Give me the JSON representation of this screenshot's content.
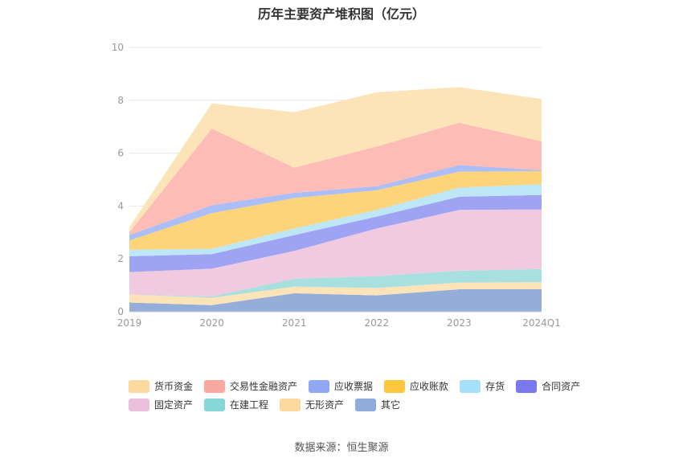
{
  "chart_data": {
    "type": "area",
    "stacked": true,
    "title": "历年主要资产堆积图（亿元）",
    "categories": [
      "2019",
      "2020",
      "2021",
      "2022",
      "2023",
      "2024Q1"
    ],
    "ylim": [
      0,
      10
    ],
    "yticks": [
      0,
      2,
      4,
      6,
      8,
      10
    ],
    "grid": true,
    "legend_position": "bottom",
    "series": [
      {
        "name": "其它",
        "color": "#94aed9",
        "values": [
          0.35,
          0.25,
          0.7,
          0.62,
          0.85,
          0.85
        ]
      },
      {
        "name": "无形资产",
        "color": "#fde3b8",
        "values": [
          0.3,
          0.28,
          0.25,
          0.28,
          0.25,
          0.27
        ]
      },
      {
        "name": "在建工程",
        "color": "#a8e0e0",
        "values": [
          0.0,
          0.05,
          0.3,
          0.45,
          0.45,
          0.5
        ]
      },
      {
        "name": "固定资产",
        "color": "#f0cbe0",
        "values": [
          0.85,
          1.05,
          1.05,
          1.8,
          2.3,
          2.25
        ]
      },
      {
        "name": "合同资产",
        "color": "#9fa3f3",
        "values": [
          0.6,
          0.55,
          0.6,
          0.45,
          0.5,
          0.55
        ]
      },
      {
        "name": "存货",
        "color": "#bde6f7",
        "values": [
          0.25,
          0.2,
          0.25,
          0.25,
          0.35,
          0.4
        ]
      },
      {
        "name": "应收账款",
        "color": "#fdd479",
        "values": [
          0.35,
          1.35,
          1.15,
          0.75,
          0.6,
          0.5
        ]
      },
      {
        "name": "应收票据",
        "color": "#abbef7",
        "values": [
          0.2,
          0.3,
          0.2,
          0.15,
          0.25,
          0.03
        ]
      },
      {
        "name": "交易性金融资产",
        "color": "#fdbcb6",
        "values": [
          0.1,
          2.9,
          0.95,
          1.5,
          1.6,
          1.1
        ]
      },
      {
        "name": "货币资金",
        "color": "#fde3b8",
        "values": [
          0.2,
          0.95,
          2.1,
          2.05,
          1.35,
          1.6
        ]
      }
    ],
    "legend": [
      {
        "name": "货币资金",
        "color": "#fdd9a0"
      },
      {
        "name": "交易性金融资产",
        "color": "#f9a99f"
      },
      {
        "name": "应收票据",
        "color": "#8fa7f5"
      },
      {
        "name": "应收账款",
        "color": "#fcc63e"
      },
      {
        "name": "存货",
        "color": "#a7e0fb"
      },
      {
        "name": "合同资产",
        "color": "#7a78ef"
      },
      {
        "name": "固定资产",
        "color": "#ebbfdc"
      },
      {
        "name": "在建工程",
        "color": "#86d7d7"
      },
      {
        "name": "无形资产",
        "color": "#fdd9a0"
      },
      {
        "name": "其它",
        "color": "#8eabda"
      }
    ],
    "source": "数据来源：恒生聚源"
  }
}
